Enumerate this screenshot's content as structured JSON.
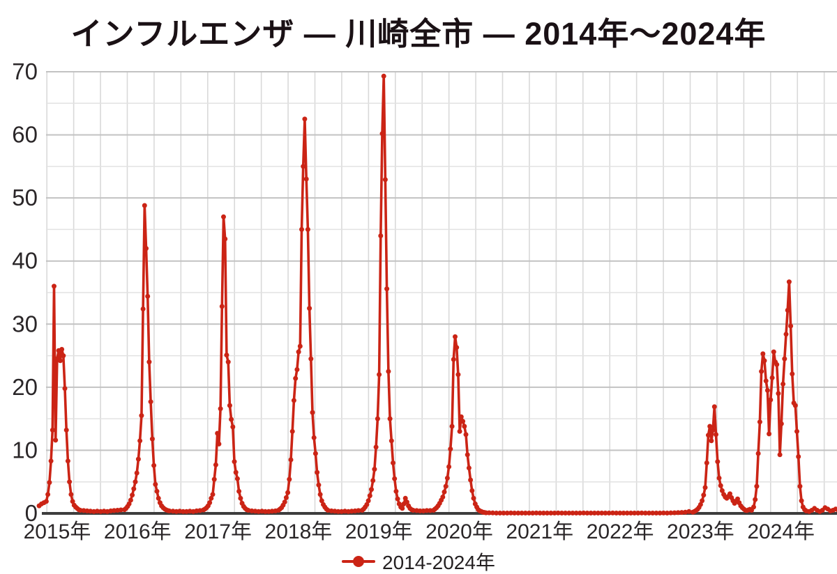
{
  "chart": {
    "title": "インフルエンザ — 川崎全市 — 2014年〜2024年",
    "legend": {
      "label": "2014-2024年"
    }
  },
  "colors": {
    "series_red": "#cb2415",
    "title_text": "#1a1115",
    "axis_text": "#2a2628",
    "grid_major": "#c2c2c2",
    "grid_minor": "#e2e2e2",
    "grid_vertical": "#d9d9d9",
    "baseline": "#3d3d3d"
  },
  "chart_data": {
    "type": "line",
    "title": "インフルエンザ — 川崎全市 — 2014年〜2024年",
    "xlabel": "",
    "ylabel": "",
    "legend_position": "bottom-center",
    "grid": {
      "vertical_lines": true,
      "horizontal_major_step": 10,
      "horizontal_minor_step": 5
    },
    "x_axis": {
      "tick_years": [
        2015,
        2016,
        2017,
        2018,
        2019,
        2020,
        2021,
        2022,
        2023,
        2024
      ],
      "tick_labels": [
        "2015年",
        "2016年",
        "2017年",
        "2018年",
        "2019年",
        "2020年",
        "2021年",
        "2022年",
        "2023年",
        "2024年"
      ],
      "range_years": [
        2014.78,
        2024.73
      ]
    },
    "y_axis": {
      "ticks": [
        0,
        10,
        20,
        30,
        40,
        50,
        60,
        70
      ],
      "range": [
        0,
        70
      ]
    },
    "series": [
      {
        "name": "2014-2024年",
        "marker": "circle",
        "unit": "weekly reported cases per sentinel",
        "segments": [
          {
            "start": 2014.775,
            "step": 0.03,
            "values": [
              1.2,
              1.5,
              1.7
            ]
          },
          {
            "start": 2014.865,
            "step": 0.0192,
            "values": [
              1.9,
              3.0,
              4.9,
              8.3,
              13.2,
              36.0,
              11.6,
              24.5,
              25.8,
              24.2,
              26.0,
              25.0,
              19.8,
              13.2,
              8.3,
              5.0,
              3.0,
              1.9,
              1.3,
              1.0,
              0.8,
              0.6,
              0.5
            ]
          },
          {
            "start": 2015.33,
            "step": 0.042,
            "values": [
              0.45,
              0.4,
              0.35,
              0.3,
              0.35,
              0.3,
              0.35,
              0.3,
              0.4,
              0.45,
              0.5,
              0.55
            ]
          },
          {
            "start": 2015.837,
            "step": 0.0192,
            "values": [
              0.6,
              0.8,
              1.1,
              1.5,
              2.1,
              2.9,
              3.9,
              5.0,
              6.4,
              8.6,
              11.5,
              15.5,
              32.4,
              48.8,
              42.0,
              34.4,
              24.0,
              17.7,
              11.8,
              7.6,
              4.6,
              3.5,
              2.4,
              1.7,
              1.2,
              0.9,
              0.7,
              0.55,
              0.45,
              0.4
            ]
          },
          {
            "start": 2016.44,
            "step": 0.042,
            "values": [
              0.35,
              0.3,
              0.35,
              0.3,
              0.3,
              0.35,
              0.3,
              0.4,
              0.45
            ]
          },
          {
            "start": 2016.819,
            "step": 0.0192,
            "values": [
              0.55,
              0.7,
              0.9,
              1.2,
              1.7,
              2.4,
              3.0,
              5.4,
              7.7,
              12.7,
              11.0,
              16.6,
              32.8,
              47.0,
              43.5,
              25.1,
              24.0,
              17.1,
              14.9,
              13.7,
              8.2,
              6.5,
              5.5,
              3.5,
              2.4,
              1.6,
              1.1,
              0.8,
              0.6,
              0.5
            ]
          },
          {
            "start": 2017.42,
            "step": 0.042,
            "values": [
              0.4,
              0.35,
              0.3,
              0.35,
              0.3,
              0.3,
              0.35,
              0.4
            ]
          },
          {
            "start": 2017.752,
            "step": 0.0192,
            "values": [
              0.5,
              0.7,
              0.9,
              1.3,
              1.8,
              2.5,
              3.3,
              5.4,
              8.5,
              13.0,
              17.9,
              21.4,
              22.8,
              25.6,
              26.5,
              45.0,
              55.0,
              62.5,
              53.0,
              45.0,
              32.5,
              24.5,
              16.0,
              12.0,
              9.5,
              6.5,
              4.5,
              3.0,
              2.0,
              1.4,
              1.0,
              0.7,
              0.5
            ]
          },
          {
            "start": 2018.41,
            "step": 0.042,
            "values": [
              0.4,
              0.35,
              0.3,
              0.3,
              0.35,
              0.3,
              0.35,
              0.4,
              0.45
            ]
          },
          {
            "start": 2018.792,
            "step": 0.0192,
            "values": [
              0.5,
              0.7,
              1.0,
              1.4,
              2.0,
              2.8,
              3.8,
              5.2,
              7.0,
              10.5,
              15.0,
              22.0,
              44.0,
              60.2,
              69.3,
              52.9,
              35.6,
              22.5,
              15.0,
              11.5,
              8.0,
              5.5,
              3.5,
              2.3,
              1.5,
              1.0,
              0.8,
              1.5,
              2.4,
              1.8,
              1.2,
              0.8,
              0.6,
              0.5
            ]
          },
          {
            "start": 2019.47,
            "step": 0.042,
            "values": [
              0.45,
              0.4,
              0.4,
              0.45,
              0.45
            ]
          },
          {
            "start": 2019.679,
            "step": 0.0192,
            "values": [
              0.5,
              0.7,
              0.9,
              1.2,
              1.6,
              2.1,
              2.6,
              3.4,
              4.3,
              5.6,
              7.4,
              10.2,
              13.8,
              24.4,
              28.0,
              26.3,
              22.0,
              13.0,
              15.3,
              14.6,
              13.8,
              12.5,
              9.3,
              7.2,
              5.3,
              3.6,
              2.4,
              1.5,
              1.0,
              0.6,
              0.4,
              0.3,
              0.2,
              0.15,
              0.1
            ]
          },
          {
            "start": 2020.37,
            "step": 0.0452,
            "values": [
              0.1,
              0.08,
              0.06,
              0.05,
              0.06,
              0.05,
              0.07,
              0.05,
              0.06,
              0.05,
              0.05,
              0.06,
              0.05,
              0.07,
              0.05,
              0.05,
              0.06,
              0.05,
              0.05,
              0.07,
              0.05,
              0.06,
              0.05,
              0.05,
              0.06,
              0.05,
              0.07,
              0.05,
              0.05,
              0.06,
              0.05,
              0.05,
              0.06,
              0.05,
              0.07,
              0.05,
              0.06,
              0.05,
              0.05,
              0.06,
              0.05,
              0.05,
              0.07,
              0.05,
              0.06,
              0.05,
              0.06,
              0.05,
              0.07,
              0.06,
              0.08,
              0.1,
              0.12,
              0.15,
              0.2,
              0.3
            ]
          },
          {
            "start": 2022.904,
            "step": 0.0192,
            "values": [
              0.2,
              0.3,
              0.45,
              0.65,
              0.95,
              1.4,
              2.0,
              2.9,
              4.1,
              8.0,
              12.4,
              13.8,
              11.5,
              13.2,
              16.9,
              12.5,
              8.2,
              5.6,
              4.4,
              3.6,
              3.0,
              2.6,
              2.4,
              2.7,
              3.1,
              2.5,
              2.0,
              1.6,
              1.9,
              2.3,
              1.7,
              1.2,
              0.9,
              0.7,
              0.5,
              0.45,
              0.55,
              0.65,
              0.5
            ]
          },
          {
            "start": 2023.66,
            "step": 0.0192,
            "values": [
              1.0,
              2.2,
              4.3,
              9.5,
              14.5,
              22.5,
              25.3,
              24.2,
              21.0,
              19.5,
              12.6,
              18.0,
              21.5,
              25.6,
              24.0,
              23.6,
              19.0,
              9.3,
              14.2,
              20.5,
              24.5,
              28.4,
              32.2,
              36.7,
              29.7,
              22.1,
              17.5,
              17.1,
              13.0,
              9.0,
              4.3,
              2.0,
              1.0,
              0.6,
              0.4
            ]
          },
          {
            "start": 2024.35,
            "step": 0.033,
            "values": [
              0.3,
              0.5,
              0.8,
              0.5,
              0.3,
              0.5,
              0.9,
              0.7,
              0.4,
              0.5,
              0.7,
              0.5
            ]
          }
        ]
      }
    ]
  }
}
